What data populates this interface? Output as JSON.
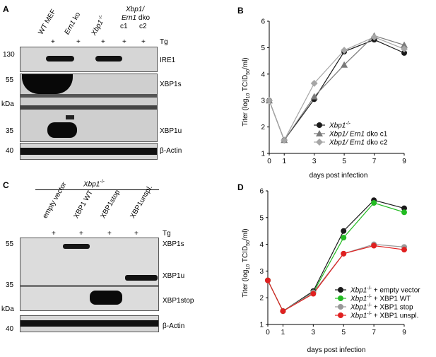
{
  "panel_letters": {
    "a": "A",
    "b": "B",
    "c": "C",
    "d": "D"
  },
  "panel_a": {
    "lanes": [
      "WT MEF",
      "Ern1 ko",
      "Xbp1-/-",
      "Xbp1/ Ern1 dko c1",
      "Xbp1/ Ern1 dko c2"
    ],
    "lane_marks": [
      "+",
      "+",
      "+",
      "+",
      "+"
    ],
    "treatment": "Tg",
    "bands": [
      "IRE1",
      "XBP1s",
      "XBP1u",
      "β-Actin"
    ],
    "markers": [
      "130",
      "55",
      "35",
      "40"
    ],
    "unit": "kDa",
    "headers": {
      "wt": "WT MEF",
      "ern": "Ern1",
      "ko": "ko",
      "xbp": "Xbp1",
      "sup": "-/-",
      "dko1": "Xbp1/",
      "dko2a": "Ern1",
      "dko2b": "dko",
      "c1": "c1",
      "c2": "c2"
    }
  },
  "panel_c": {
    "group_label": "Xbp1",
    "group_sup": "-/-",
    "lanes": [
      "empty vector",
      "XBP1 WT",
      "XBP1stop",
      "XBP1unspl."
    ],
    "lane_marks": [
      "+",
      "+",
      "+",
      "+"
    ],
    "treatment": "Tg",
    "bands": [
      "XBP1s",
      "XBP1u",
      "XBP1stop",
      "β-Actin"
    ],
    "markers": [
      "55",
      "35",
      "40"
    ],
    "unit": "kDa"
  },
  "chart_data": [
    {
      "type": "line",
      "panel": "B",
      "xlabel": "days post infection",
      "ylabel": "Titer (log10 TCID50/ml)",
      "ylabel_parts": {
        "a": "Titer (log",
        "b": "10",
        "c": " TCID",
        "d": "50",
        "e": "/ml)"
      },
      "x": [
        0,
        1,
        3,
        5,
        7,
        9
      ],
      "xticks": [
        "0",
        "1",
        "3",
        "5",
        "7",
        "9"
      ],
      "yticks": [
        "1",
        "2",
        "3",
        "4",
        "5",
        "6"
      ],
      "xlim": [
        0,
        9
      ],
      "ylim": [
        1,
        6
      ],
      "legend_placement": "bottom-right",
      "series": [
        {
          "name": "Xbp1-/-",
          "name_parts": [
            "Xbp1",
            "-/-",
            ""
          ],
          "values": [
            3.0,
            1.5,
            3.05,
            4.85,
            5.3,
            4.8
          ],
          "color": "#1a1a1a",
          "marker": "circle"
        },
        {
          "name": "Xbp1/ Ern1 dko c1",
          "name_parts": [
            "Xbp1/ Ern1",
            "",
            " dko c1"
          ],
          "values": [
            3.0,
            1.5,
            3.15,
            4.35,
            5.45,
            5.1
          ],
          "color": "#7a7a7a",
          "marker": "triangle"
        },
        {
          "name": "Xbp1/ Ern1 dko c2",
          "name_parts": [
            "Xbp1/ Ern1",
            "",
            " dko c2"
          ],
          "values": [
            3.0,
            1.5,
            3.65,
            4.9,
            5.4,
            4.95
          ],
          "color": "#a6a6a6",
          "marker": "diamond"
        }
      ]
    },
    {
      "type": "line",
      "panel": "D",
      "xlabel": "days post infection",
      "ylabel": "Titer (log10 TCID50/ml)",
      "ylabel_parts": {
        "a": "Titer (log",
        "b": "10",
        "c": " TCID",
        "d": "50",
        "e": "/ml)"
      },
      "x": [
        0,
        1,
        3,
        5,
        7,
        9
      ],
      "xticks": [
        "0",
        "1",
        "3",
        "5",
        "7",
        "9"
      ],
      "yticks": [
        "1",
        "2",
        "3",
        "4",
        "5",
        "6"
      ],
      "xlim": [
        0,
        9
      ],
      "ylim": [
        1,
        6
      ],
      "legend_placement": "bottom-right",
      "series": [
        {
          "name": "Xbp1-/- + empty vector",
          "name_parts": [
            "Xbp1",
            "-/-",
            " + empty vector"
          ],
          "values": [
            2.65,
            1.5,
            2.25,
            4.5,
            5.65,
            5.35
          ],
          "color": "#1a1a1a",
          "marker": "circle"
        },
        {
          "name": "Xbp1-/- + XBP1 WT",
          "name_parts": [
            "Xbp1",
            "-/-",
            " + XBP1 WT"
          ],
          "values": [
            2.65,
            1.5,
            2.2,
            4.25,
            5.55,
            5.2
          ],
          "color": "#22bb22",
          "marker": "circle"
        },
        {
          "name": "Xbp1-/- + XBP1 stop",
          "name_parts": [
            "Xbp1",
            "-/-",
            " + XBP1 stop"
          ],
          "values": [
            2.65,
            1.5,
            2.2,
            3.65,
            4.0,
            3.9
          ],
          "color": "#999999",
          "marker": "circle"
        },
        {
          "name": "Xbp1-/- + XBP1 unspl.",
          "name_parts": [
            "Xbp1",
            "-/-",
            " + XBP1 unspl."
          ],
          "values": [
            2.65,
            1.5,
            2.15,
            3.65,
            3.95,
            3.8
          ],
          "color": "#e02020",
          "marker": "circle"
        }
      ]
    }
  ]
}
